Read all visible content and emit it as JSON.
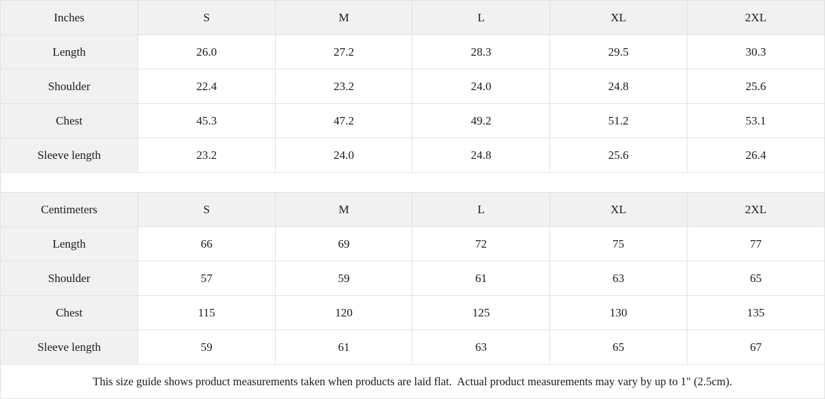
{
  "colors": {
    "header_background": "#f1f1f1",
    "label_background": "#f1f1f1",
    "cell_background": "#ffffff",
    "border": "#e1e1e1",
    "text": "#1b1b1b"
  },
  "size_guide": {
    "tables": [
      {
        "unit_label": "Inches",
        "sizes": [
          "S",
          "M",
          "L",
          "XL",
          "2XL"
        ],
        "rows": [
          {
            "label": "Length",
            "values": [
              "26.0",
              "27.2",
              "28.3",
              "29.5",
              "30.3"
            ]
          },
          {
            "label": "Shoulder",
            "values": [
              "22.4",
              "23.2",
              "24.0",
              "24.8",
              "25.6"
            ]
          },
          {
            "label": "Chest",
            "values": [
              "45.3",
              "47.2",
              "49.2",
              "51.2",
              "53.1"
            ]
          },
          {
            "label": "Sleeve length",
            "values": [
              "23.2",
              "24.0",
              "24.8",
              "25.6",
              "26.4"
            ]
          }
        ]
      },
      {
        "unit_label": "Centimeters",
        "sizes": [
          "S",
          "M",
          "L",
          "XL",
          "2XL"
        ],
        "rows": [
          {
            "label": "Length",
            "values": [
              "66",
              "69",
              "72",
              "75",
              "77"
            ]
          },
          {
            "label": "Shoulder",
            "values": [
              "57",
              "59",
              "61",
              "63",
              "65"
            ]
          },
          {
            "label": "Chest",
            "values": [
              "115",
              "120",
              "125",
              "130",
              "135"
            ]
          },
          {
            "label": "Sleeve length",
            "values": [
              "59",
              "61",
              "63",
              "65",
              "67"
            ]
          }
        ]
      }
    ],
    "footer_note": "This size guide shows product measurements taken when products are laid flat.  Actual product measurements may vary by up to 1\" (2.5cm)."
  },
  "chart_data": [
    {
      "type": "table",
      "title": "Inches",
      "columns": [
        "Inches",
        "S",
        "M",
        "L",
        "XL",
        "2XL"
      ],
      "rows": [
        [
          "Length",
          26.0,
          27.2,
          28.3,
          29.5,
          30.3
        ],
        [
          "Shoulder",
          22.4,
          23.2,
          24.0,
          24.8,
          25.6
        ],
        [
          "Chest",
          45.3,
          47.2,
          49.2,
          51.2,
          53.1
        ],
        [
          "Sleeve length",
          23.2,
          24.0,
          24.8,
          25.6,
          26.4
        ]
      ]
    },
    {
      "type": "table",
      "title": "Centimeters",
      "columns": [
        "Centimeters",
        "S",
        "M",
        "L",
        "XL",
        "2XL"
      ],
      "rows": [
        [
          "Length",
          66,
          69,
          72,
          75,
          77
        ],
        [
          "Shoulder",
          57,
          59,
          61,
          63,
          65
        ],
        [
          "Chest",
          115,
          120,
          125,
          130,
          135
        ],
        [
          "Sleeve length",
          59,
          61,
          63,
          65,
          67
        ]
      ]
    }
  ]
}
